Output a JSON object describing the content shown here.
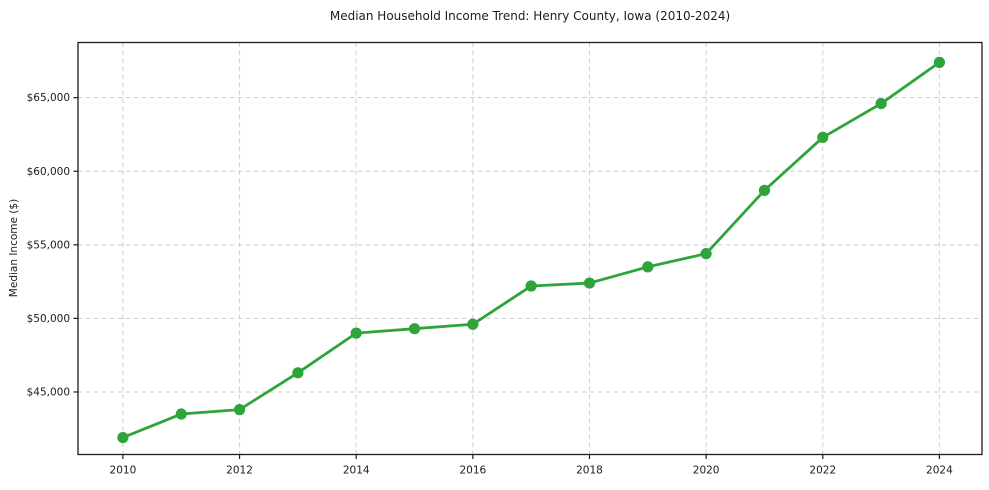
{
  "chart": {
    "title": "Median Household Income Trend: Henry County, Iowa (2010-2024)",
    "ylabel": "Median Income ($)"
  },
  "chart_data": {
    "type": "line",
    "title": "Median Household Income Trend: Henry County, Iowa (2010-2024)",
    "xlabel": "",
    "ylabel": "Median Income ($)",
    "series_name": "Median household income",
    "x": [
      2010,
      2011,
      2012,
      2013,
      2014,
      2015,
      2016,
      2017,
      2018,
      2019,
      2020,
      2021,
      2022,
      2023,
      2024
    ],
    "values": [
      41900,
      43500,
      43800,
      46300,
      49000,
      49300,
      49600,
      52200,
      52400,
      53500,
      54400,
      58700,
      62300,
      64600,
      67400
    ],
    "xlim": [
      2009.23,
      2024.73
    ],
    "ylim": [
      40750,
      68750
    ],
    "xticks": [
      {
        "value": 2010,
        "label": "2010"
      },
      {
        "value": 2012,
        "label": "2012"
      },
      {
        "value": 2014,
        "label": "2014"
      },
      {
        "value": 2016,
        "label": "2016"
      },
      {
        "value": 2018,
        "label": "2018"
      },
      {
        "value": 2020,
        "label": "2020"
      },
      {
        "value": 2022,
        "label": "2022"
      },
      {
        "value": 2024,
        "label": "2024"
      }
    ],
    "yticks": [
      {
        "value": 45000,
        "label": "$45,000"
      },
      {
        "value": 50000,
        "label": "$50,000"
      },
      {
        "value": 55000,
        "label": "$55,000"
      },
      {
        "value": 60000,
        "label": "$60,000"
      },
      {
        "value": 65000,
        "label": "$65,000"
      }
    ],
    "grid": true,
    "grid_style": "dashed",
    "legend": false,
    "line_color": "#2ea43a",
    "marker": "circle",
    "marker_color": "#2ea43a",
    "grid_color": "#cdcdcd",
    "spine_color": "#1c1c1c",
    "text_color": "#1c1c1c",
    "background": "#ffffff"
  }
}
